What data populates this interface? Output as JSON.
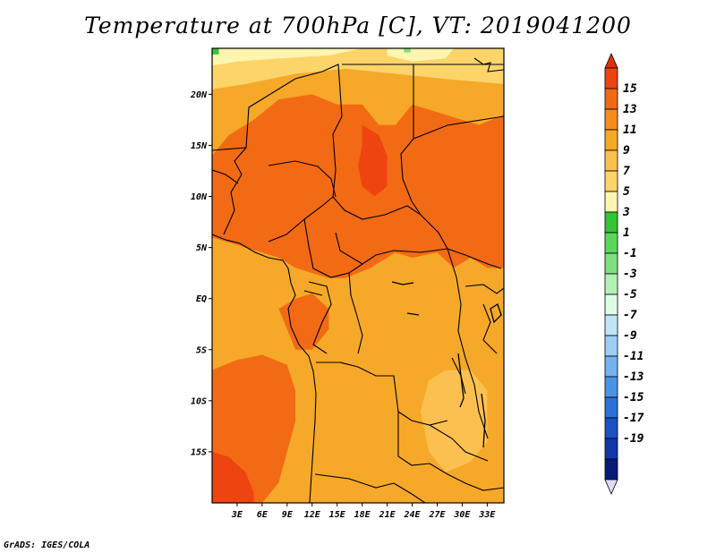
{
  "title": "Temperature at 700hPa [C], VT: 2019041200",
  "credit": "GrADS: IGES/COLA",
  "map": {
    "lon_range": [
      0,
      35
    ],
    "lat_range": [
      -20,
      24.5
    ],
    "lat_ticks": [
      {
        "value": 20,
        "label": "20N"
      },
      {
        "value": 15,
        "label": "15N"
      },
      {
        "value": 10,
        "label": "10N"
      },
      {
        "value": 5,
        "label": "5N"
      },
      {
        "value": 0,
        "label": "EQ"
      },
      {
        "value": -5,
        "label": "5S"
      },
      {
        "value": -10,
        "label": "10S"
      },
      {
        "value": -15,
        "label": "15S"
      }
    ],
    "lon_ticks": [
      {
        "value": 3,
        "label": "3E"
      },
      {
        "value": 6,
        "label": "6E"
      },
      {
        "value": 9,
        "label": "9E"
      },
      {
        "value": 12,
        "label": "12E"
      },
      {
        "value": 15,
        "label": "15E"
      },
      {
        "value": 18,
        "label": "18E"
      },
      {
        "value": 21,
        "label": "21E"
      },
      {
        "value": 24,
        "label": "24E"
      },
      {
        "value": 27,
        "label": "27E"
      },
      {
        "value": 30,
        "label": "30E"
      },
      {
        "value": 33,
        "label": "33E"
      }
    ],
    "base_color": "#f6a828",
    "regions": [
      {
        "name": "sahara-warm-band",
        "color": "#fcd46a",
        "points": [
          [
            0,
            24.5
          ],
          [
            35,
            24.5
          ],
          [
            35,
            21
          ],
          [
            28,
            21.5
          ],
          [
            22,
            22
          ],
          [
            16,
            22.5
          ],
          [
            10,
            22
          ],
          [
            4,
            21
          ],
          [
            0,
            20.5
          ]
        ]
      },
      {
        "name": "sahara-cool-edge",
        "color": "#fef5b0",
        "points": [
          [
            0,
            24.5
          ],
          [
            18,
            24.5
          ],
          [
            14,
            23.8
          ],
          [
            8,
            23.5
          ],
          [
            3,
            23.2
          ],
          [
            0,
            22.8
          ]
        ]
      },
      {
        "name": "ne-cool-patch",
        "color": "#fef5b0",
        "points": [
          [
            21,
            24.5
          ],
          [
            29,
            24.5
          ],
          [
            28,
            23.5
          ],
          [
            24,
            23.2
          ],
          [
            21,
            23.8
          ]
        ]
      },
      {
        "name": "sahel-hot-belt",
        "color": "#f36a14",
        "points": [
          [
            0,
            14
          ],
          [
            2,
            16
          ],
          [
            5,
            17.5
          ],
          [
            8,
            19.5
          ],
          [
            12,
            20
          ],
          [
            15,
            19
          ],
          [
            18,
            19
          ],
          [
            20,
            17
          ],
          [
            22,
            17
          ],
          [
            24,
            19
          ],
          [
            28,
            18
          ],
          [
            32,
            17
          ],
          [
            35,
            18
          ],
          [
            35,
            3
          ],
          [
            33,
            3
          ],
          [
            31,
            4
          ],
          [
            29,
            3
          ],
          [
            27,
            4.5
          ],
          [
            24,
            4
          ],
          [
            22,
            4.5
          ],
          [
            19,
            3
          ],
          [
            16,
            2
          ],
          [
            14,
            2
          ],
          [
            12,
            2.5
          ],
          [
            10,
            3
          ],
          [
            8,
            4
          ],
          [
            6,
            4.5
          ],
          [
            4,
            5
          ],
          [
            2,
            5.5
          ],
          [
            0,
            6
          ]
        ]
      },
      {
        "name": "chad-hotspot",
        "color": "#ee4510",
        "points": [
          [
            18,
            17
          ],
          [
            20,
            16
          ],
          [
            21,
            14
          ],
          [
            21,
            11
          ],
          [
            19.5,
            10
          ],
          [
            18,
            11
          ],
          [
            17.5,
            13
          ],
          [
            18,
            15
          ]
        ]
      },
      {
        "name": "congo-hot-patch",
        "color": "#f36a14",
        "points": [
          [
            8,
            -1
          ],
          [
            9,
            -3
          ],
          [
            10,
            -5
          ],
          [
            12,
            -5
          ],
          [
            14,
            -3
          ],
          [
            14,
            -1
          ],
          [
            12,
            0.5
          ],
          [
            10,
            0
          ]
        ]
      },
      {
        "name": "west-hot-coast",
        "color": "#f36a14",
        "points": [
          [
            0,
            -7
          ],
          [
            3,
            -6
          ],
          [
            6,
            -5.5
          ],
          [
            9,
            -6.5
          ],
          [
            10,
            -9
          ],
          [
            10,
            -12
          ],
          [
            9,
            -15
          ],
          [
            8,
            -18
          ],
          [
            6,
            -20
          ],
          [
            0,
            -20
          ]
        ]
      },
      {
        "name": "sw-hotspot",
        "color": "#ee4510",
        "points": [
          [
            0,
            -15
          ],
          [
            2,
            -15.5
          ],
          [
            4,
            -17
          ],
          [
            5,
            -19
          ],
          [
            5,
            -20
          ],
          [
            0,
            -20
          ]
        ]
      },
      {
        "name": "east-warm-patch",
        "color": "#fcc050",
        "points": [
          [
            26,
            -8
          ],
          [
            28,
            -7
          ],
          [
            31,
            -7
          ],
          [
            33,
            -9
          ],
          [
            33,
            -14
          ],
          [
            31,
            -16
          ],
          [
            28,
            -17
          ],
          [
            26,
            -15
          ],
          [
            25,
            -11
          ]
        ]
      },
      {
        "name": "green-speck-nw",
        "color": "#34c434",
        "points": [
          [
            0,
            24.5
          ],
          [
            0.8,
            24.5
          ],
          [
            0.8,
            23.9
          ],
          [
            0,
            23.9
          ]
        ]
      },
      {
        "name": "green-speck-ne",
        "color": "#7ee07e",
        "points": [
          [
            23,
            24.5
          ],
          [
            23.8,
            24.5
          ],
          [
            23.8,
            24.1
          ],
          [
            23,
            24.1
          ]
        ]
      }
    ],
    "outline_color": "#000000"
  },
  "colorbar": {
    "top_arrow_color": "#e0300a",
    "bottom_arrow_color": "#dcdcf8",
    "segments": [
      {
        "label": "15",
        "color": "#ee4510"
      },
      {
        "label": "13",
        "color": "#f36a14"
      },
      {
        "label": "11",
        "color": "#f58c1e"
      },
      {
        "label": "9",
        "color": "#f6a828"
      },
      {
        "label": "7",
        "color": "#fcc050"
      },
      {
        "label": "5",
        "color": "#fcd46a"
      },
      {
        "label": "3",
        "color": "#fef5b0"
      },
      {
        "label": "1",
        "color": "#34c434"
      },
      {
        "label": "-1",
        "color": "#5ad85a"
      },
      {
        "label": "-3",
        "color": "#7ee07e"
      },
      {
        "label": "-5",
        "color": "#b4f0b4"
      },
      {
        "label": "-7",
        "color": "#e0fae8"
      },
      {
        "label": "-9",
        "color": "#c0e4fa"
      },
      {
        "label": "-11",
        "color": "#9ccff5"
      },
      {
        "label": "-13",
        "color": "#74b2f0"
      },
      {
        "label": "-15",
        "color": "#4a94e8"
      },
      {
        "label": "-17",
        "color": "#2c72d8"
      },
      {
        "label": "-19",
        "color": "#1a52c4"
      },
      {
        "label": "",
        "color": "#1238a8"
      },
      {
        "label": "",
        "color": "#081a78"
      }
    ]
  }
}
